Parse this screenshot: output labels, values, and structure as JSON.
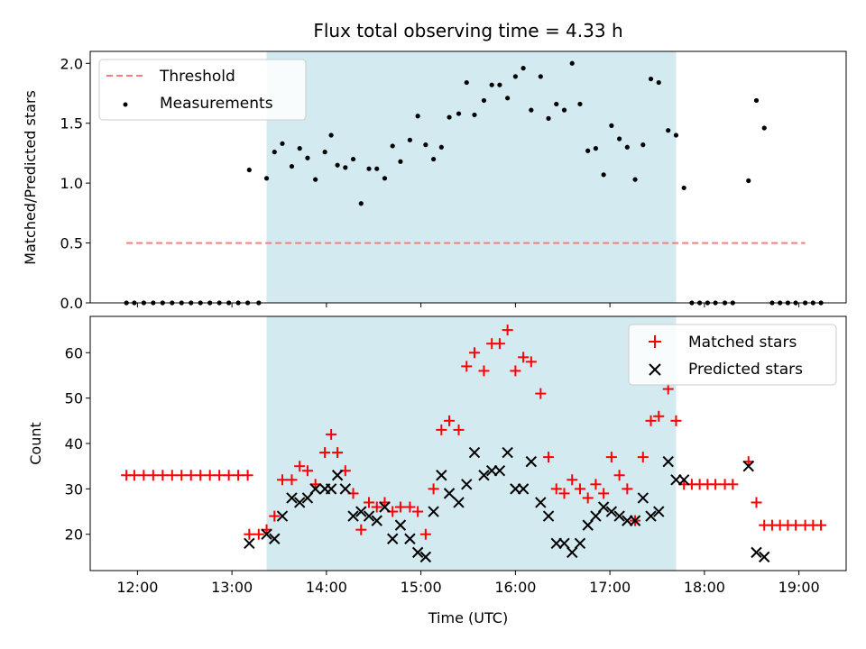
{
  "chart_data": {
    "type": "scatter",
    "title": "Flux total observing time = 4.33 h",
    "xlabel": "Time (UTC)",
    "x_ticks": [
      "12:00",
      "13:00",
      "14:00",
      "15:00",
      "16:00",
      "17:00",
      "18:00",
      "19:00"
    ],
    "xlim": [
      "11:30",
      "19:30"
    ],
    "shaded_interval": {
      "start": "13:22",
      "end": "17:42",
      "color": "#d3eaf1"
    },
    "top_panel": {
      "ylabel": "Matched/Predicted stars",
      "ylim": [
        0,
        2.1
      ],
      "y_ticks": [
        "0.0",
        "0.5",
        "1.0",
        "1.5",
        "2.0"
      ],
      "legend_position": "top-left",
      "threshold": {
        "name": "Threshold",
        "value": 0.5,
        "x_start": "11:53",
        "x_end": "19:04",
        "color": "#f08080"
      },
      "measurements": {
        "name": "Measurements",
        "color": "#000000",
        "points": [
          [
            "11:53",
            0
          ],
          [
            "11:58",
            0
          ],
          [
            "12:04",
            0
          ],
          [
            "12:10",
            0
          ],
          [
            "12:16",
            0
          ],
          [
            "12:22",
            0
          ],
          [
            "12:28",
            0
          ],
          [
            "12:34",
            0
          ],
          [
            "12:40",
            0
          ],
          [
            "12:46",
            0
          ],
          [
            "12:52",
            0
          ],
          [
            "12:58",
            0
          ],
          [
            "13:04",
            0
          ],
          [
            "13:10",
            0
          ],
          [
            "13:11",
            1.11
          ],
          [
            "13:17",
            0
          ],
          [
            "13:22",
            1.04
          ],
          [
            "13:27",
            1.26
          ],
          [
            "13:32",
            1.33
          ],
          [
            "13:38",
            1.14
          ],
          [
            "13:43",
            1.29
          ],
          [
            "13:48",
            1.21
          ],
          [
            "13:53",
            1.03
          ],
          [
            "13:59",
            1.26
          ],
          [
            "14:03",
            1.4
          ],
          [
            "14:07",
            1.15
          ],
          [
            "14:12",
            1.13
          ],
          [
            "14:17",
            1.2
          ],
          [
            "14:22",
            0.83
          ],
          [
            "14:27",
            1.12
          ],
          [
            "14:32",
            1.12
          ],
          [
            "14:37",
            1.04
          ],
          [
            "14:42",
            1.31
          ],
          [
            "14:47",
            1.18
          ],
          [
            "14:53",
            1.36
          ],
          [
            "14:58",
            1.56
          ],
          [
            "15:03",
            1.32
          ],
          [
            "15:08",
            1.2
          ],
          [
            "15:13",
            1.3
          ],
          [
            "15:18",
            1.55
          ],
          [
            "15:24",
            1.58
          ],
          [
            "15:29",
            1.84
          ],
          [
            "15:34",
            1.57
          ],
          [
            "15:40",
            1.69
          ],
          [
            "15:45",
            1.82
          ],
          [
            "15:50",
            1.82
          ],
          [
            "15:55",
            1.71
          ],
          [
            "16:00",
            1.89
          ],
          [
            "16:05",
            1.96
          ],
          [
            "16:10",
            1.61
          ],
          [
            "16:16",
            1.89
          ],
          [
            "16:21",
            1.54
          ],
          [
            "16:26",
            1.66
          ],
          [
            "16:31",
            1.61
          ],
          [
            "16:36",
            2.0
          ],
          [
            "16:41",
            1.66
          ],
          [
            "16:46",
            1.27
          ],
          [
            "16:51",
            1.29
          ],
          [
            "16:56",
            1.07
          ],
          [
            "17:01",
            1.48
          ],
          [
            "17:06",
            1.37
          ],
          [
            "17:11",
            1.3
          ],
          [
            "17:16",
            1.03
          ],
          [
            "17:21",
            1.32
          ],
          [
            "17:26",
            1.87
          ],
          [
            "17:31",
            1.84
          ],
          [
            "17:37",
            1.44
          ],
          [
            "17:42",
            1.4
          ],
          [
            "17:47",
            0.96
          ],
          [
            "17:52",
            0
          ],
          [
            "17:57",
            0
          ],
          [
            "18:02",
            0
          ],
          [
            "18:07",
            0
          ],
          [
            "18:13",
            0
          ],
          [
            "18:18",
            0
          ],
          [
            "18:28",
            1.02
          ],
          [
            "18:33",
            1.69
          ],
          [
            "18:38",
            1.46
          ],
          [
            "18:43",
            0
          ],
          [
            "18:48",
            0
          ],
          [
            "18:53",
            0
          ],
          [
            "18:58",
            0
          ],
          [
            "19:04",
            0
          ],
          [
            "19:09",
            0
          ],
          [
            "19:14",
            0
          ]
        ]
      }
    },
    "bottom_panel": {
      "ylabel": "Count",
      "ylim": [
        12,
        68
      ],
      "y_ticks": [
        "20",
        "30",
        "40",
        "50",
        "60"
      ],
      "legend_position": "top-right",
      "series": [
        {
          "name": "Matched stars",
          "marker": "+",
          "color": "#ff0000",
          "points": [
            [
              "11:53",
              33
            ],
            [
              "11:58",
              33
            ],
            [
              "12:04",
              33
            ],
            [
              "12:10",
              33
            ],
            [
              "12:16",
              33
            ],
            [
              "12:22",
              33
            ],
            [
              "12:28",
              33
            ],
            [
              "12:34",
              33
            ],
            [
              "12:40",
              33
            ],
            [
              "12:46",
              33
            ],
            [
              "12:52",
              33
            ],
            [
              "12:58",
              33
            ],
            [
              "13:04",
              33
            ],
            [
              "13:10",
              33
            ],
            [
              "13:11",
              20
            ],
            [
              "13:17",
              20
            ],
            [
              "13:22",
              21
            ],
            [
              "13:27",
              24
            ],
            [
              "13:32",
              32
            ],
            [
              "13:38",
              32
            ],
            [
              "13:43",
              35
            ],
            [
              "13:48",
              34
            ],
            [
              "13:53",
              31
            ],
            [
              "13:59",
              38
            ],
            [
              "14:03",
              42
            ],
            [
              "14:07",
              38
            ],
            [
              "14:12",
              34
            ],
            [
              "14:17",
              29
            ],
            [
              "14:22",
              21
            ],
            [
              "14:27",
              27
            ],
            [
              "14:32",
              26
            ],
            [
              "14:37",
              27
            ],
            [
              "14:42",
              25
            ],
            [
              "14:47",
              26
            ],
            [
              "14:53",
              26
            ],
            [
              "14:58",
              25
            ],
            [
              "15:03",
              20
            ],
            [
              "15:08",
              30
            ],
            [
              "15:13",
              43
            ],
            [
              "15:18",
              45
            ],
            [
              "15:24",
              43
            ],
            [
              "15:29",
              57
            ],
            [
              "15:34",
              60
            ],
            [
              "15:40",
              56
            ],
            [
              "15:45",
              62
            ],
            [
              "15:50",
              62
            ],
            [
              "15:55",
              65
            ],
            [
              "16:00",
              56
            ],
            [
              "16:05",
              59
            ],
            [
              "16:10",
              58
            ],
            [
              "16:16",
              51
            ],
            [
              "16:21",
              37
            ],
            [
              "16:26",
              30
            ],
            [
              "16:31",
              29
            ],
            [
              "16:36",
              32
            ],
            [
              "16:41",
              30
            ],
            [
              "16:46",
              28
            ],
            [
              "16:51",
              31
            ],
            [
              "16:56",
              29
            ],
            [
              "17:01",
              37
            ],
            [
              "17:06",
              33
            ],
            [
              "17:11",
              30
            ],
            [
              "17:16",
              23
            ],
            [
              "17:21",
              37
            ],
            [
              "17:26",
              45
            ],
            [
              "17:31",
              46
            ],
            [
              "17:37",
              52
            ],
            [
              "17:42",
              45
            ],
            [
              "17:47",
              31
            ],
            [
              "17:52",
              31
            ],
            [
              "17:57",
              31
            ],
            [
              "18:02",
              31
            ],
            [
              "18:07",
              31
            ],
            [
              "18:13",
              31
            ],
            [
              "18:18",
              31
            ],
            [
              "18:28",
              36
            ],
            [
              "18:33",
              27
            ],
            [
              "18:38",
              22
            ],
            [
              "18:43",
              22
            ],
            [
              "18:48",
              22
            ],
            [
              "18:53",
              22
            ],
            [
              "18:58",
              22
            ],
            [
              "19:04",
              22
            ],
            [
              "19:09",
              22
            ],
            [
              "19:14",
              22
            ]
          ]
        },
        {
          "name": "Predicted stars",
          "marker": "x",
          "color": "#000000",
          "points": [
            [
              "13:11",
              18
            ],
            [
              "13:22",
              20
            ],
            [
              "13:27",
              19
            ],
            [
              "13:32",
              24
            ],
            [
              "13:38",
              28
            ],
            [
              "13:43",
              27
            ],
            [
              "13:48",
              28
            ],
            [
              "13:53",
              30
            ],
            [
              "13:59",
              30
            ],
            [
              "14:03",
              30
            ],
            [
              "14:07",
              33
            ],
            [
              "14:12",
              30
            ],
            [
              "14:17",
              24
            ],
            [
              "14:22",
              25
            ],
            [
              "14:27",
              24
            ],
            [
              "14:32",
              23
            ],
            [
              "14:37",
              26
            ],
            [
              "14:42",
              19
            ],
            [
              "14:47",
              22
            ],
            [
              "14:53",
              19
            ],
            [
              "14:58",
              16
            ],
            [
              "15:03",
              15
            ],
            [
              "15:08",
              25
            ],
            [
              "15:13",
              33
            ],
            [
              "15:18",
              29
            ],
            [
              "15:24",
              27
            ],
            [
              "15:29",
              31
            ],
            [
              "15:34",
              38
            ],
            [
              "15:40",
              33
            ],
            [
              "15:45",
              34
            ],
            [
              "15:50",
              34
            ],
            [
              "15:55",
              38
            ],
            [
              "16:00",
              30
            ],
            [
              "16:05",
              30
            ],
            [
              "16:10",
              36
            ],
            [
              "16:16",
              27
            ],
            [
              "16:21",
              24
            ],
            [
              "16:26",
              18
            ],
            [
              "16:31",
              18
            ],
            [
              "16:36",
              16
            ],
            [
              "16:41",
              18
            ],
            [
              "16:46",
              22
            ],
            [
              "16:51",
              24
            ],
            [
              "16:56",
              26
            ],
            [
              "17:01",
              25
            ],
            [
              "17:06",
              24
            ],
            [
              "17:11",
              23
            ],
            [
              "17:16",
              23
            ],
            [
              "17:21",
              28
            ],
            [
              "17:26",
              24
            ],
            [
              "17:31",
              25
            ],
            [
              "17:37",
              36
            ],
            [
              "17:42",
              32
            ],
            [
              "17:47",
              32
            ],
            [
              "18:28",
              35
            ],
            [
              "18:33",
              16
            ],
            [
              "18:38",
              15
            ]
          ]
        }
      ]
    }
  }
}
